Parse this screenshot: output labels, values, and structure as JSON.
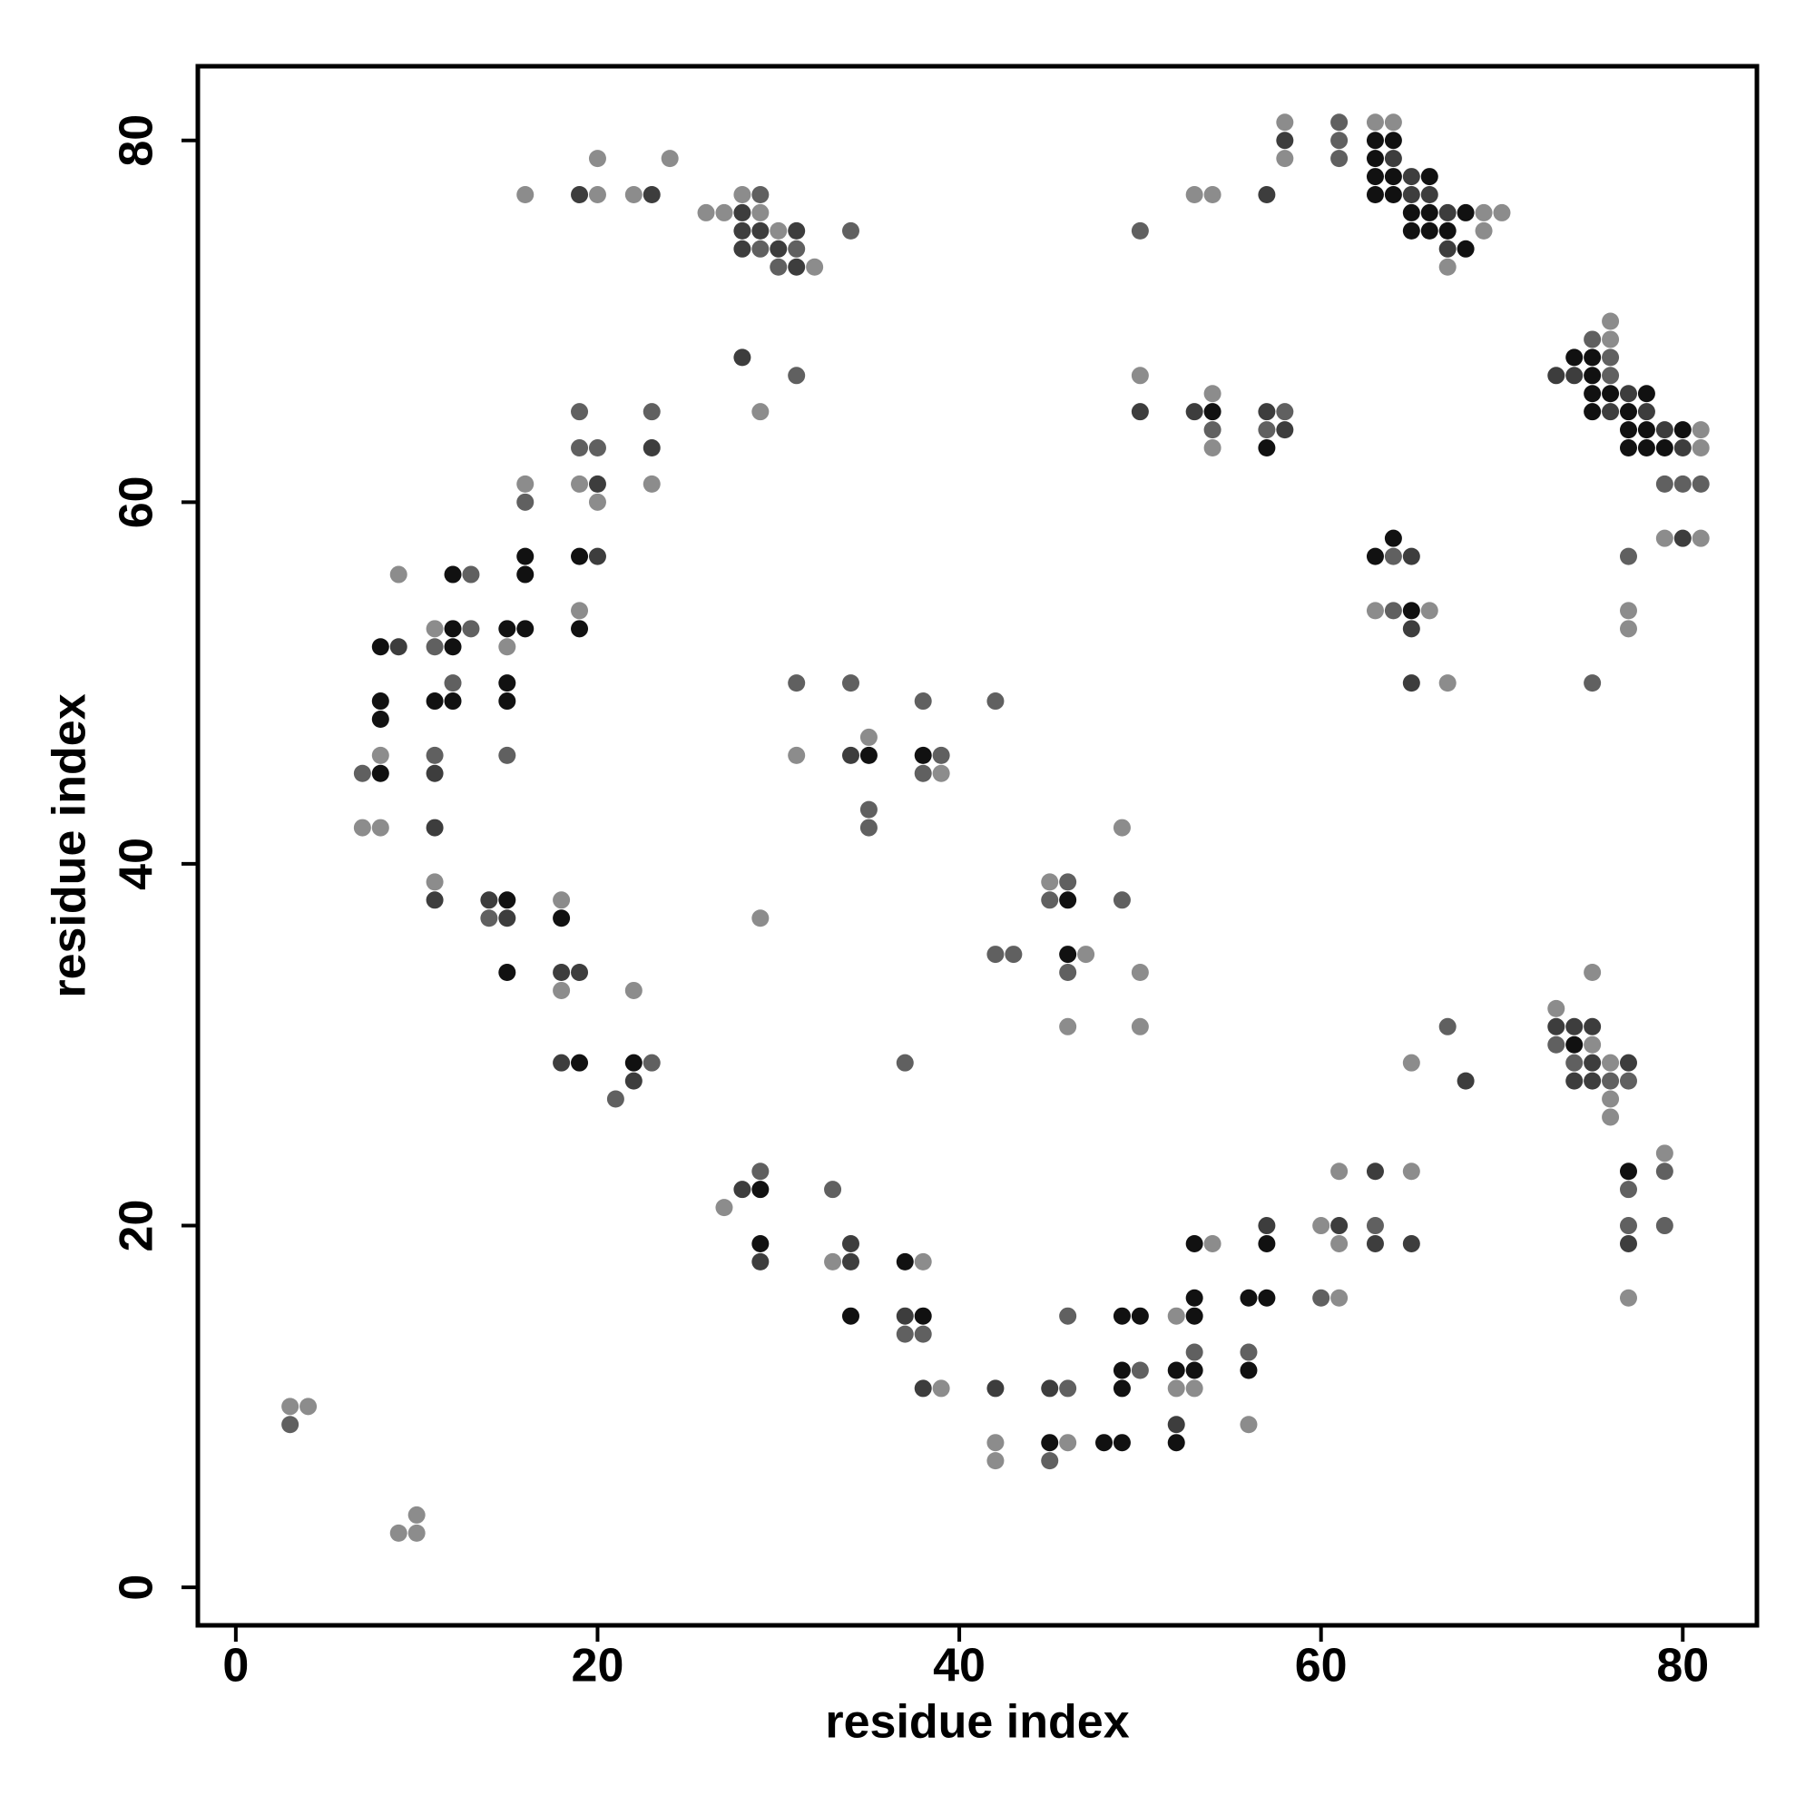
{
  "chart_data": {
    "type": "scatter",
    "x_label": "residue index",
    "y_label": "residue index",
    "xlim": [
      -2.1,
      84.1
    ],
    "ylim": [
      -2.1,
      84.1
    ],
    "xticks": [
      0,
      20,
      40,
      60,
      80
    ],
    "yticks": [
      0,
      20,
      40,
      60,
      80
    ],
    "grid": false,
    "series": [
      {
        "color": "#111111",
        "x": [
          63,
          64,
          63,
          63,
          64,
          66,
          63,
          64,
          65,
          66,
          68,
          65,
          66,
          67,
          68,
          54,
          57,
          74,
          75,
          75,
          75,
          76,
          78,
          75,
          77,
          77,
          78,
          80,
          77,
          78,
          79,
          63,
          64,
          65,
          19,
          19,
          16,
          16,
          15,
          16,
          12,
          12,
          12,
          8,
          8,
          8,
          11,
          12,
          15,
          15,
          8,
          15,
          15,
          18,
          19,
          22,
          35,
          38,
          46,
          46,
          74,
          77,
          29,
          29,
          34,
          37,
          38,
          45,
          48,
          49,
          49,
          50,
          49,
          49,
          53,
          53,
          52,
          53,
          52,
          53,
          56,
          57,
          56,
          57
        ],
        "y": [
          80,
          80,
          79,
          78,
          78,
          78,
          77,
          77,
          76,
          76,
          76,
          75,
          75,
          75,
          74,
          65,
          63,
          68,
          68,
          67,
          66,
          66,
          66,
          65,
          65,
          64,
          64,
          64,
          63,
          63,
          63,
          57,
          58,
          54,
          57,
          53,
          57,
          56,
          53,
          53,
          56,
          53,
          52,
          52,
          49,
          48,
          49,
          49,
          50,
          49,
          45,
          38,
          34,
          37,
          29,
          29,
          46,
          46,
          38,
          35,
          30,
          23,
          22,
          19,
          15,
          18,
          15,
          8,
          8,
          8,
          15,
          15,
          12,
          11,
          16,
          15,
          12,
          12,
          8,
          19,
          16,
          16,
          12,
          19
        ]
      },
      {
        "color": "#3d3d3d",
        "x": [
          58,
          64,
          65,
          65,
          66,
          67,
          67,
          57,
          19,
          23,
          28,
          28,
          29,
          31,
          28,
          30,
          31,
          28,
          50,
          53,
          57,
          58,
          73,
          74,
          77,
          76,
          78,
          79,
          80,
          80,
          65,
          65,
          65,
          20,
          23,
          20,
          9,
          11,
          11,
          11,
          14,
          15,
          18,
          19,
          18,
          22,
          34,
          68,
          73,
          74,
          75,
          75,
          77,
          74,
          75,
          77,
          28,
          29,
          34,
          34,
          37,
          38,
          42,
          45,
          52,
          57,
          61,
          63,
          63,
          65
        ],
        "y": [
          80,
          79,
          78,
          77,
          77,
          76,
          74,
          77,
          77,
          77,
          76,
          75,
          75,
          75,
          74,
          74,
          73,
          68,
          65,
          65,
          65,
          64,
          67,
          67,
          66,
          65,
          65,
          64,
          63,
          58,
          57,
          53,
          50,
          61,
          63,
          57,
          52,
          45,
          42,
          38,
          38,
          37,
          34,
          34,
          29,
          28,
          46,
          28,
          31,
          31,
          31,
          29,
          29,
          28,
          28,
          19,
          22,
          18,
          19,
          18,
          15,
          11,
          11,
          11,
          9,
          20,
          20,
          23,
          19,
          19
        ]
      },
      {
        "color": "#606060",
        "x": [
          61,
          61,
          61,
          29,
          29,
          31,
          30,
          34,
          50,
          31,
          54,
          58,
          57,
          76,
          75,
          76,
          79,
          80,
          81,
          77,
          75,
          64,
          64,
          16,
          19,
          19,
          20,
          23,
          13,
          11,
          13,
          12,
          7,
          11,
          15,
          14,
          23,
          21,
          31,
          34,
          35,
          35,
          38,
          39,
          38,
          42,
          37,
          42,
          43,
          46,
          45,
          46,
          49,
          67,
          73,
          74,
          76,
          77,
          79,
          77,
          77,
          79,
          29,
          33,
          37,
          38,
          46,
          46,
          45,
          50,
          53,
          56,
          60,
          63,
          3
        ],
        "y": [
          81,
          80,
          79,
          77,
          74,
          74,
          73,
          75,
          75,
          67,
          64,
          65,
          64,
          68,
          69,
          67,
          61,
          61,
          61,
          57,
          50,
          57,
          54,
          60,
          65,
          63,
          63,
          65,
          56,
          52,
          53,
          50,
          45,
          46,
          46,
          37,
          29,
          27,
          50,
          50,
          43,
          42,
          49,
          46,
          45,
          49,
          29,
          35,
          35,
          39,
          38,
          34,
          38,
          31,
          30,
          29,
          28,
          28,
          23,
          22,
          20,
          20,
          23,
          22,
          14,
          14,
          11,
          15,
          7,
          12,
          13,
          13,
          16,
          20,
          9
        ]
      },
      {
        "color": "#8c8c8c",
        "x": [
          58,
          58,
          63,
          64,
          69,
          70,
          69,
          67,
          53,
          54,
          16,
          20,
          20,
          22,
          24,
          26,
          27,
          28,
          29,
          30,
          32,
          29,
          50,
          54,
          54,
          76,
          76,
          81,
          81,
          79,
          81,
          77,
          77,
          63,
          66,
          67,
          16,
          19,
          20,
          23,
          19,
          15,
          9,
          11,
          8,
          7,
          8,
          11,
          18,
          18,
          22,
          29,
          31,
          35,
          39,
          45,
          47,
          46,
          49,
          50,
          50,
          65,
          73,
          75,
          75,
          76,
          76,
          76,
          79,
          77,
          27,
          33,
          38,
          39,
          42,
          42,
          46,
          52,
          52,
          53,
          54,
          56,
          60,
          61,
          61,
          61,
          65,
          3,
          4,
          9,
          10,
          10
        ],
        "y": [
          81,
          79,
          81,
          81,
          76,
          76,
          75,
          73,
          77,
          77,
          77,
          77,
          79,
          77,
          79,
          76,
          76,
          77,
          76,
          75,
          73,
          65,
          67,
          66,
          63,
          70,
          69,
          64,
          63,
          58,
          58,
          54,
          53,
          54,
          54,
          50,
          61,
          61,
          60,
          61,
          54,
          52,
          56,
          53,
          46,
          42,
          42,
          39,
          38,
          33,
          33,
          37,
          46,
          47,
          45,
          39,
          35,
          31,
          42,
          34,
          31,
          29,
          32,
          34,
          30,
          29,
          27,
          26,
          24,
          16,
          21,
          18,
          18,
          11,
          8,
          7,
          8,
          15,
          11,
          11,
          19,
          9,
          20,
          19,
          23,
          16,
          23,
          10,
          10,
          3,
          3,
          4
        ]
      }
    ]
  }
}
